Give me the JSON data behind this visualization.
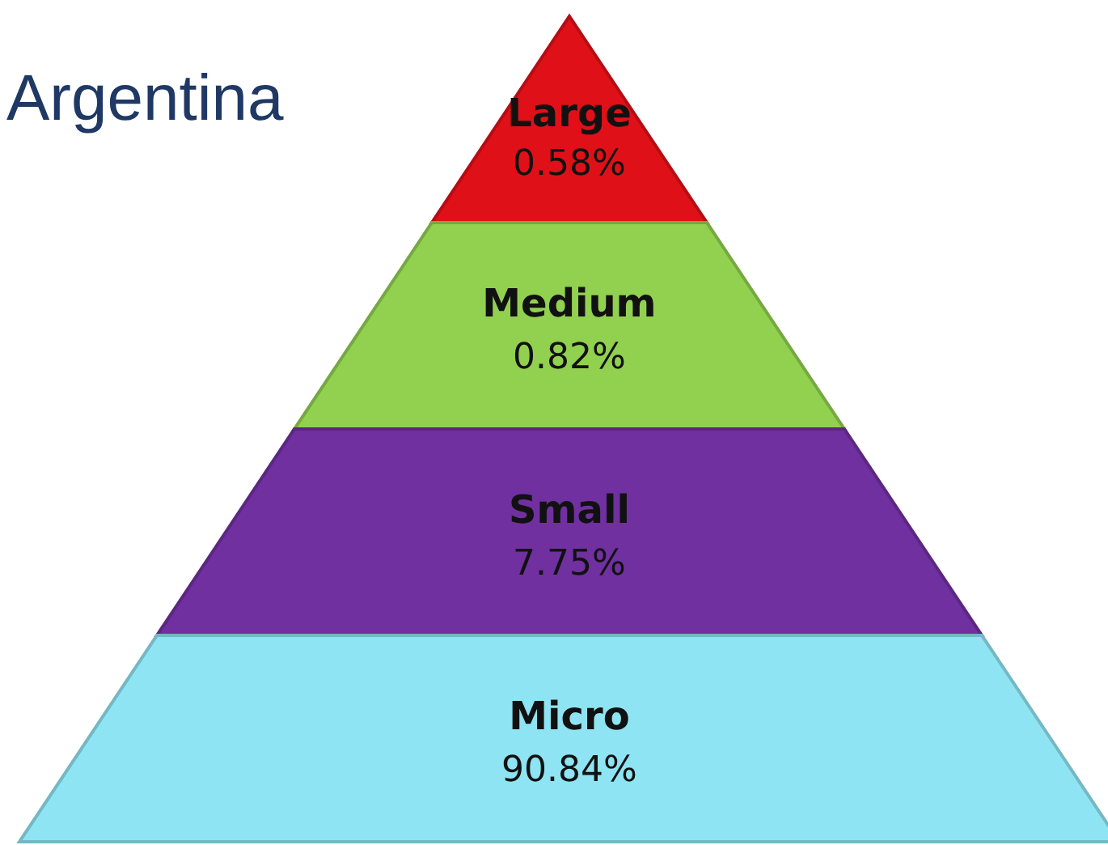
{
  "chart_data": {
    "type": "other",
    "title": "Argentina",
    "categories": [
      "Large",
      "Medium",
      "Small",
      "Micro"
    ],
    "values": [
      0.58,
      0.82,
      7.75,
      90.84
    ],
    "value_labels": [
      "0.58%",
      "0.82%",
      "7.75%",
      "90.84%"
    ],
    "colors": [
      "#e01018",
      "#92d050",
      "#7030a0",
      "#8ee4f2"
    ],
    "data_labels": true
  }
}
